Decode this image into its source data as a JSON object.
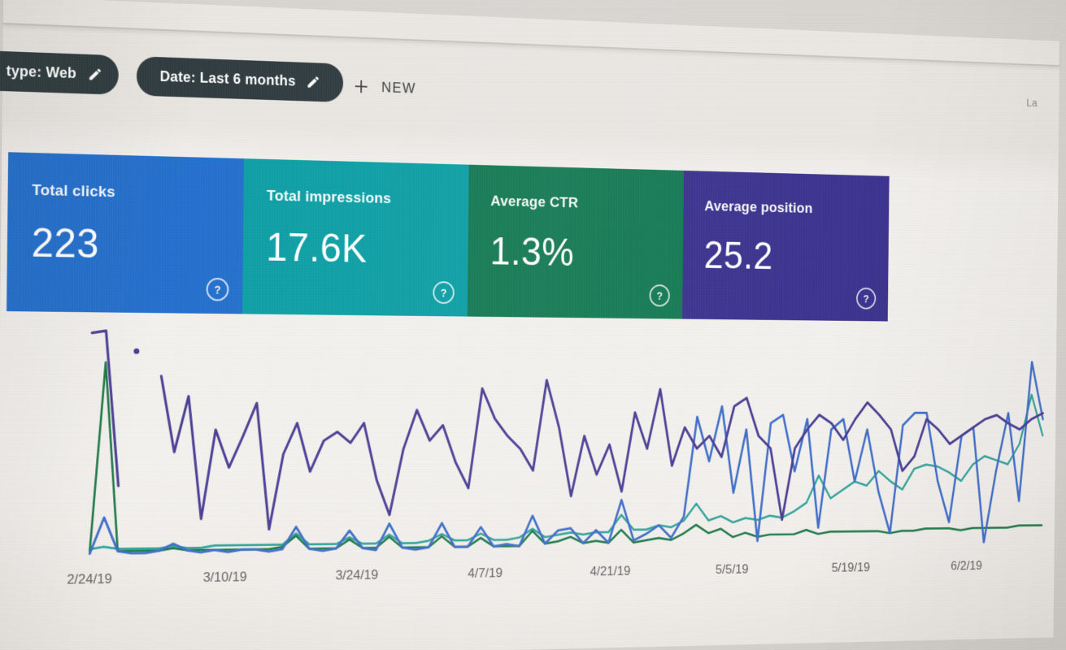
{
  "filter_bar": {
    "chips": [
      {
        "label": "type: Web",
        "icon": "pencil-icon"
      },
      {
        "label": "Date: Last 6 months",
        "icon": "pencil-icon"
      }
    ],
    "new_button_label": "NEW",
    "last_updated_partial": "La",
    "chip_bg": "#303d41"
  },
  "icons": {
    "help_glyph": "?"
  },
  "metric_cards": [
    {
      "label": "Total clicks",
      "value": "223",
      "color": "#1f72d8"
    },
    {
      "label": "Total impressions",
      "value": "17.6K",
      "color": "#02a3aa"
    },
    {
      "label": "Average CTR",
      "value": "1.3%",
      "color": "#0f7e55"
    },
    {
      "label": "Average position",
      "value": "25.2",
      "color": "#3d3498"
    }
  ],
  "chart_data": {
    "type": "line",
    "title": "",
    "xlabel": "",
    "ylabel": "",
    "legend": "none (series colors match metric cards)",
    "y_axis_visible": false,
    "ylim": [
      0,
      100
    ],
    "units": "relative 0-100 scale; y axis is unlabeled in the screenshot, values estimated from line heights",
    "x_tick_labels": [
      "2/24/19",
      "3/10/19",
      "3/24/19",
      "4/7/19",
      "4/21/19",
      "5/5/19",
      "5/19/19",
      "6/2/19"
    ],
    "series": [
      {
        "name": "Clicks",
        "color": "#3d6fd4",
        "values": [
          0,
          16,
          1,
          0,
          0,
          1,
          4,
          1,
          0,
          1,
          0,
          1,
          1,
          0,
          1,
          11,
          1,
          0,
          1,
          9,
          1,
          0,
          12,
          1,
          0,
          1,
          12,
          1,
          1,
          10,
          1,
          2,
          1,
          15,
          2,
          8,
          9,
          2,
          8,
          2,
          22,
          3,
          6,
          10,
          4,
          14,
          61,
          40,
          66,
          25,
          55,
          2,
          58,
          62,
          35,
          60,
          8,
          55,
          60,
          30,
          55,
          25,
          5,
          57,
          63,
          63,
          30,
          10,
          52,
          56,
          0,
          35,
          63,
          20,
          88,
          60
        ]
      },
      {
        "name": "Impressions",
        "color": "#28a79f",
        "values": [
          2,
          3,
          2,
          2,
          2,
          2,
          3,
          2,
          2,
          3,
          3,
          3,
          3,
          3,
          3,
          8,
          3,
          3,
          3,
          6,
          3,
          3,
          7,
          3,
          3,
          4,
          7,
          4,
          4,
          7,
          4,
          4,
          5,
          9,
          5,
          6,
          7,
          6,
          7,
          7,
          15,
          8,
          8,
          10,
          9,
          12,
          20,
          12,
          14,
          11,
          13,
          12,
          14,
          13,
          16,
          20,
          33,
          22,
          26,
          30,
          28,
          35,
          30,
          26,
          36,
          38,
          37,
          34,
          30,
          38,
          42,
          40,
          38,
          48,
          72,
          52
        ]
      },
      {
        "name": "CTR",
        "color": "#177c46",
        "values": [
          1,
          85,
          1,
          1,
          1,
          1,
          2,
          1,
          1,
          1,
          1,
          1,
          1,
          1,
          2,
          7,
          1,
          1,
          1,
          5,
          1,
          1,
          6,
          1,
          1,
          1,
          6,
          1,
          1,
          5,
          1,
          1,
          1,
          8,
          2,
          3,
          5,
          2,
          3,
          2,
          8,
          2,
          3,
          4,
          3,
          6,
          10,
          6,
          8,
          4,
          6,
          4,
          5,
          5,
          5,
          7,
          5,
          6,
          6,
          6,
          6,
          6,
          5,
          6,
          6,
          7,
          7,
          7,
          6,
          7,
          7,
          7,
          7,
          8,
          8,
          8
        ]
      },
      {
        "name": "Average position",
        "color": "#4c3f9f",
        "values": [
          98,
          99,
          30,
          null,
          null,
          79,
          45,
          70,
          15,
          55,
          38,
          52,
          67,
          10,
          44,
          58,
          36,
          50,
          54,
          49,
          58,
          32,
          16,
          46,
          64,
          50,
          57,
          40,
          28,
          74,
          60,
          52,
          46,
          36,
          78,
          56,
          24,
          52,
          34,
          48,
          26,
          63,
          46,
          74,
          38,
          56,
          46,
          52,
          42,
          66,
          70,
          52,
          46,
          12,
          46,
          55,
          62,
          58,
          50,
          60,
          68,
          62,
          55,
          35,
          42,
          60,
          55,
          48,
          52,
          56,
          60,
          62,
          58,
          55,
          60,
          63
        ]
      }
    ],
    "lone_points": [
      {
        "series": "Average position",
        "slot": 3.2,
        "value": 90
      }
    ]
  }
}
